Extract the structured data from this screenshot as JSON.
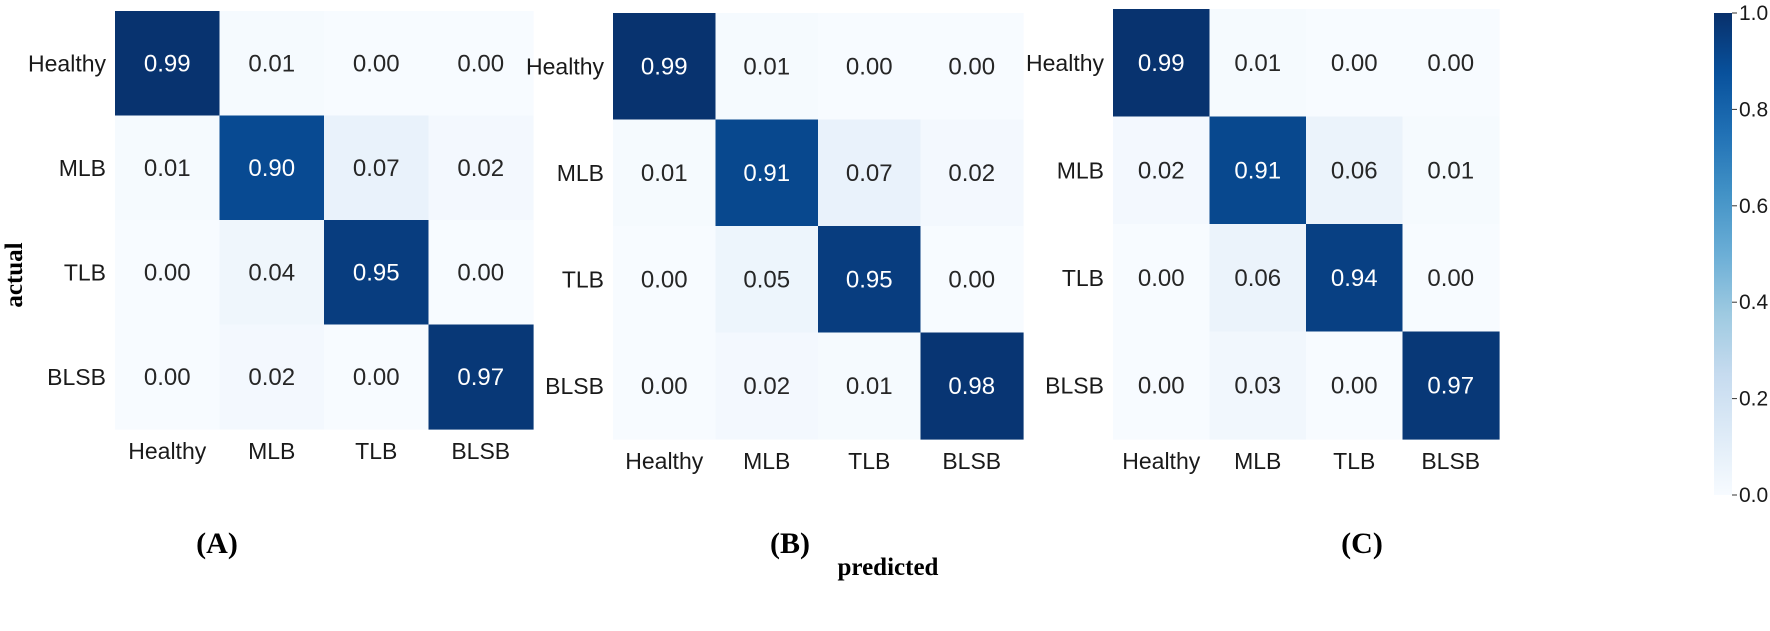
{
  "chart_data": [
    {
      "type": "heatmap",
      "panel_label": "(A)",
      "rows": [
        "Healthy",
        "MLB",
        "TLB",
        "BLSB"
      ],
      "columns": [
        "Healthy",
        "MLB",
        "TLB",
        "BLSB"
      ],
      "values": [
        [
          0.99,
          0.01,
          0.0,
          0.0
        ],
        [
          0.01,
          0.9,
          0.07,
          0.02
        ],
        [
          0.0,
          0.04,
          0.95,
          0.0
        ],
        [
          0.0,
          0.02,
          0.0,
          0.97
        ]
      ]
    },
    {
      "type": "heatmap",
      "panel_label": "(B)",
      "rows": [
        "Healthy",
        "MLB",
        "TLB",
        "BLSB"
      ],
      "columns": [
        "Healthy",
        "MLB",
        "TLB",
        "BLSB"
      ],
      "values": [
        [
          0.99,
          0.01,
          0.0,
          0.0
        ],
        [
          0.01,
          0.91,
          0.07,
          0.02
        ],
        [
          0.0,
          0.05,
          0.95,
          0.0
        ],
        [
          0.0,
          0.02,
          0.01,
          0.98
        ]
      ]
    },
    {
      "type": "heatmap",
      "panel_label": "(C)",
      "rows": [
        "Healthy",
        "MLB",
        "TLB",
        "BLSB"
      ],
      "columns": [
        "Healthy",
        "MLB",
        "TLB",
        "BLSB"
      ],
      "values": [
        [
          0.99,
          0.01,
          0.0,
          0.0
        ],
        [
          0.02,
          0.91,
          0.06,
          0.01
        ],
        [
          0.0,
          0.06,
          0.94,
          0.0
        ],
        [
          0.0,
          0.03,
          0.0,
          0.97
        ]
      ]
    }
  ],
  "xlabel": "predicted",
  "ylabel": "actual",
  "colorbar": {
    "range": [
      0.0,
      1.0
    ],
    "ticks": [
      0.0,
      0.2,
      0.4,
      0.6,
      0.8,
      1.0
    ],
    "tick_labels": [
      "0.0",
      "0.2",
      "0.4",
      "0.6",
      "0.8",
      "1.0"
    ],
    "colormap": "Blues",
    "low_color": "#f7fbff",
    "high_color": "#08306b"
  }
}
